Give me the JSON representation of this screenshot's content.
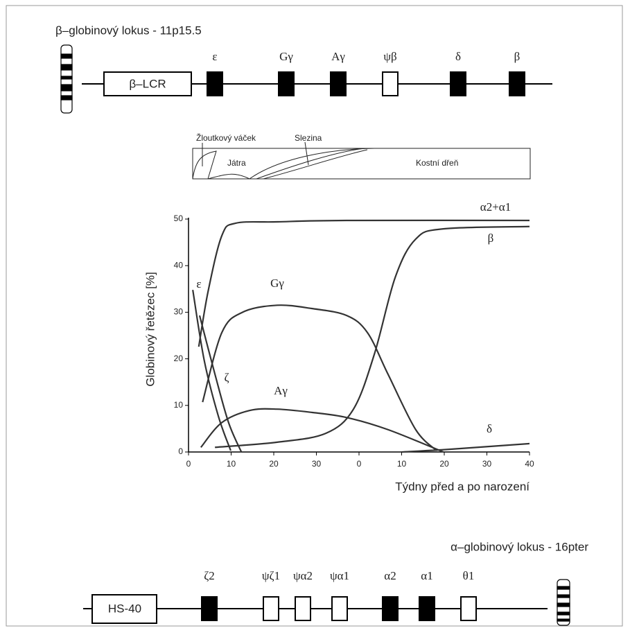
{
  "beta_locus": {
    "title": "β–globinový lokus - 11p15.5",
    "lcr": "β–LCR",
    "genes": [
      {
        "label": "ε",
        "filled": true
      },
      {
        "label": "Gγ",
        "filled": true
      },
      {
        "label": "Aγ",
        "filled": true
      },
      {
        "label": "ψβ",
        "filled": false
      },
      {
        "label": "δ",
        "filled": true
      },
      {
        "label": "β",
        "filled": true
      }
    ]
  },
  "tissues": {
    "yolk_sac": "Žloutkový váček",
    "spleen": "Slezina",
    "liver": "Játra",
    "marrow": "Kostní dřeň"
  },
  "chart_data": {
    "type": "line",
    "x_label": "Týdny před a po narození",
    "y_label": "Globinový řetězec [%]",
    "xlim": [
      0,
      80
    ],
    "ylim": [
      0,
      50
    ],
    "xticks": [
      0,
      10,
      20,
      30,
      {
        "value": 40,
        "label": "0"
      },
      {
        "value": 50,
        "label": "10"
      },
      {
        "value": 60,
        "label": "20"
      },
      {
        "value": 70,
        "label": "30"
      },
      {
        "value": 80,
        "label": "40"
      }
    ],
    "yticks": [
      0,
      10,
      20,
      30,
      40,
      50
    ],
    "series": [
      {
        "name": "α2+α1",
        "color": "#333333",
        "x": [
          2.4,
          4.6,
          7.8,
          11,
          20.8,
          37,
          80
        ],
        "values": [
          22.6,
          34.5,
          46.4,
          49.1,
          49.4,
          49.7,
          49.7
        ]
      },
      {
        "name": "β",
        "color": "#333333",
        "x": [
          6.2,
          20.8,
          32.2,
          38.7,
          43.6,
          48.5,
          53.3,
          59.8,
          80
        ],
        "values": [
          1,
          2.1,
          4,
          9.2,
          21,
          37.5,
          45.7,
          47.9,
          48.4
        ]
      },
      {
        "name": "Gγ",
        "color": "#333333",
        "x": [
          3.3,
          7.8,
          12.7,
          20.8,
          28.9,
          37.1,
          42,
          46.8,
          53.3,
          58.2
        ],
        "values": [
          10.7,
          25.6,
          30,
          31.5,
          30.8,
          29.3,
          25.6,
          16.7,
          4.8,
          0.3
        ]
      },
      {
        "name": "Aγ",
        "color": "#333333",
        "x": [
          2.9,
          7.8,
          14.3,
          20.8,
          28.9,
          37.1,
          46.8,
          59.8
        ],
        "values": [
          1,
          6.3,
          8.9,
          9.2,
          8.5,
          7.4,
          4.8,
          0
        ]
      },
      {
        "name": "ε",
        "color": "#333333",
        "x": [
          1,
          3.7,
          7,
          9.9
        ],
        "values": [
          34.8,
          19.6,
          7.7,
          0.3
        ]
      },
      {
        "name": "ζ",
        "color": "#333333",
        "x": [
          2.6,
          6.2,
          9.4,
          12.4
        ],
        "values": [
          29.3,
          16.7,
          6.3,
          0
        ]
      },
      {
        "name": "δ",
        "color": "#333333",
        "x": [
          50,
          61.5,
          80
        ],
        "values": [
          0,
          0.6,
          1.8
        ]
      }
    ]
  },
  "alpha_locus": {
    "title": "α–globinový lokus - 16pter",
    "hs": "HS-40",
    "genes": [
      {
        "label": "ζ2",
        "filled": true
      },
      {
        "label": "ψζ1",
        "filled": false
      },
      {
        "label": "ψα2",
        "filled": false
      },
      {
        "label": "ψα1",
        "filled": false
      },
      {
        "label": "α2",
        "filled": true
      },
      {
        "label": "α1",
        "filled": true
      },
      {
        "label": "θ1",
        "filled": false
      }
    ]
  }
}
